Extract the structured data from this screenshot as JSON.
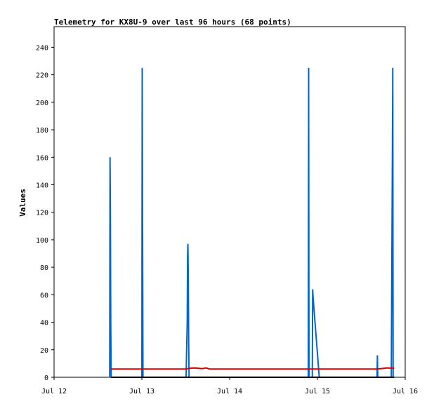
{
  "chart_data": {
    "type": "line",
    "title": "Telemetry for KX8U-9 over last 96 hours (68 points)",
    "xlabel": "",
    "ylabel": "Values",
    "xlim": [
      0,
      96
    ],
    "ylim": [
      0,
      255
    ],
    "x_ticks": [
      {
        "value": 0,
        "label": "Jul 12"
      },
      {
        "value": 24,
        "label": "Jul 13"
      },
      {
        "value": 48,
        "label": "Jul 14"
      },
      {
        "value": 72,
        "label": "Jul 15"
      },
      {
        "value": 96,
        "label": "Jul 16"
      }
    ],
    "y_ticks": [
      0,
      20,
      40,
      60,
      80,
      100,
      120,
      140,
      160,
      180,
      200,
      220,
      240
    ],
    "grid": false,
    "series": [
      {
        "color": "#0066cc",
        "points": [
          [
            15.2,
            0
          ],
          [
            15.3,
            160
          ],
          [
            15.4,
            120
          ],
          [
            15.5,
            40
          ],
          [
            15.6,
            0
          ],
          [
            24.0,
            0
          ],
          [
            24.1,
            225
          ],
          [
            24.2,
            112
          ],
          [
            24.3,
            0
          ],
          [
            36.1,
            0
          ],
          [
            36.2,
            14
          ],
          [
            36.4,
            40
          ],
          [
            36.5,
            88
          ],
          [
            36.6,
            97
          ],
          [
            36.7,
            72
          ],
          [
            36.8,
            25
          ],
          [
            36.9,
            0
          ],
          [
            69.5,
            0
          ],
          [
            69.6,
            225
          ],
          [
            69.7,
            0
          ],
          [
            70.6,
            0
          ],
          [
            70.7,
            64
          ],
          [
            70.8,
            59
          ],
          [
            72.5,
            0
          ],
          [
            88.3,
            0
          ],
          [
            88.4,
            16
          ],
          [
            88.5,
            0
          ],
          [
            92.2,
            0
          ],
          [
            92.3,
            56
          ],
          [
            92.5,
            168
          ],
          [
            92.6,
            225
          ],
          [
            92.7,
            0
          ]
        ]
      },
      {
        "color": "#dd0000",
        "points": [
          [
            15.6,
            6
          ],
          [
            36.0,
            6
          ],
          [
            37.0,
            6.5
          ],
          [
            38.5,
            6.8
          ],
          [
            39.5,
            6.5
          ],
          [
            40.5,
            6.2
          ],
          [
            41.5,
            6.8
          ],
          [
            42.5,
            6
          ],
          [
            70.0,
            6
          ],
          [
            88.0,
            6
          ],
          [
            89.5,
            6.3
          ],
          [
            91.0,
            6.8
          ],
          [
            93.0,
            6.5
          ]
        ]
      },
      {
        "color": "#000000",
        "points": [
          [
            15.6,
            0
          ],
          [
            93.0,
            0
          ]
        ]
      }
    ]
  }
}
